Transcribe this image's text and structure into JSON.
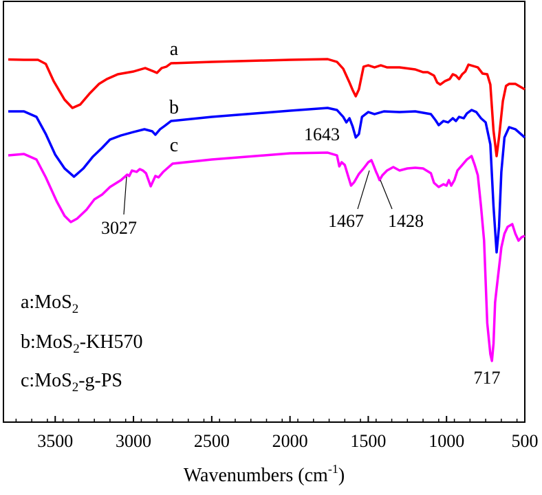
{
  "chart_data": {
    "type": "line",
    "title": "",
    "xlabel": "Wavenumbers",
    "xlabel_unit_base": "(cm",
    "xlabel_unit_exp": "-1",
    "xlabel_unit_close": ")",
    "ylabel": "",
    "xlim": [
      3800,
      500
    ],
    "x_reversed": true,
    "x_ticks": [
      3500,
      3000,
      2500,
      2000,
      1500,
      1000,
      500
    ],
    "series": [
      {
        "name": "a",
        "label": "MoS",
        "label_sub": "2",
        "color": "#ff0000",
        "points": [
          [
            3800,
            86.5
          ],
          [
            3700,
            87
          ],
          [
            3610,
            87
          ],
          [
            3560,
            93
          ],
          [
            3510,
            118
          ],
          [
            3440,
            145
          ],
          [
            3390,
            157
          ],
          [
            3340,
            152
          ],
          [
            3280,
            136
          ],
          [
            3220,
            122
          ],
          [
            3170,
            115
          ],
          [
            3100,
            108
          ],
          [
            3000,
            104
          ],
          [
            2925,
            99
          ],
          [
            2870,
            104
          ],
          [
            2850,
            106
          ],
          [
            2820,
            99
          ],
          [
            2790,
            97
          ],
          [
            2760,
            92
          ],
          [
            2500,
            90
          ],
          [
            2000,
            87
          ],
          [
            1760,
            86
          ],
          [
            1700,
            90
          ],
          [
            1660,
            100
          ],
          [
            1620,
            120
          ],
          [
            1600,
            131
          ],
          [
            1580,
            140
          ],
          [
            1560,
            130
          ],
          [
            1530,
            97
          ],
          [
            1500,
            95
          ],
          [
            1460,
            98
          ],
          [
            1420,
            95
          ],
          [
            1380,
            98
          ],
          [
            1300,
            98
          ],
          [
            1200,
            101
          ],
          [
            1150,
            105
          ],
          [
            1120,
            105
          ],
          [
            1080,
            110
          ],
          [
            1060,
            120
          ],
          [
            1040,
            123
          ],
          [
            1010,
            118
          ],
          [
            980,
            115
          ],
          [
            960,
            108
          ],
          [
            940,
            110
          ],
          [
            920,
            115
          ],
          [
            900,
            108
          ],
          [
            880,
            104
          ],
          [
            860,
            94
          ],
          [
            830,
            96
          ],
          [
            800,
            98
          ],
          [
            770,
            107
          ],
          [
            740,
            108
          ],
          [
            720,
            123
          ],
          [
            700,
            190
          ],
          [
            680,
            227
          ],
          [
            665,
            200
          ],
          [
            640,
            147
          ],
          [
            620,
            125
          ],
          [
            600,
            122
          ],
          [
            560,
            122
          ],
          [
            500,
            130
          ]
        ]
      },
      {
        "name": "b",
        "label": "MoS",
        "label_sub": "2",
        "label_suffix": "-KH570",
        "color": "#0000ff",
        "points": [
          [
            3800,
            162
          ],
          [
            3700,
            162
          ],
          [
            3620,
            170
          ],
          [
            3560,
            195
          ],
          [
            3500,
            225
          ],
          [
            3440,
            245
          ],
          [
            3380,
            257
          ],
          [
            3320,
            245
          ],
          [
            3260,
            228
          ],
          [
            3200,
            215
          ],
          [
            3150,
            203
          ],
          [
            3080,
            197
          ],
          [
            3000,
            192
          ],
          [
            2930,
            188
          ],
          [
            2880,
            191
          ],
          [
            2860,
            196
          ],
          [
            2830,
            188
          ],
          [
            2800,
            183
          ],
          [
            2760,
            176
          ],
          [
            2500,
            170
          ],
          [
            2000,
            161
          ],
          [
            1760,
            157
          ],
          [
            1700,
            160
          ],
          [
            1660,
            170
          ],
          [
            1640,
            178
          ],
          [
            1620,
            172
          ],
          [
            1600,
            184
          ],
          [
            1580,
            200
          ],
          [
            1560,
            195
          ],
          [
            1540,
            170
          ],
          [
            1500,
            163
          ],
          [
            1460,
            166
          ],
          [
            1400,
            162
          ],
          [
            1300,
            163
          ],
          [
            1200,
            162
          ],
          [
            1100,
            166
          ],
          [
            1070,
            175
          ],
          [
            1050,
            182
          ],
          [
            1020,
            176
          ],
          [
            990,
            178
          ],
          [
            960,
            172
          ],
          [
            940,
            176
          ],
          [
            920,
            170
          ],
          [
            890,
            172
          ],
          [
            870,
            165
          ],
          [
            840,
            160
          ],
          [
            810,
            163
          ],
          [
            780,
            172
          ],
          [
            750,
            178
          ],
          [
            720,
            210
          ],
          [
            700,
            300
          ],
          [
            680,
            367
          ],
          [
            665,
            330
          ],
          [
            650,
            250
          ],
          [
            630,
            200
          ],
          [
            600,
            185
          ],
          [
            560,
            188
          ],
          [
            500,
            200
          ]
        ]
      },
      {
        "name": "c",
        "label": "MoS",
        "label_sub": "2",
        "label_suffix": "-g-PS",
        "color": "#ff00ff",
        "points": [
          [
            3800,
            226
          ],
          [
            3700,
            224
          ],
          [
            3620,
            232
          ],
          [
            3560,
            258
          ],
          [
            3490,
            293
          ],
          [
            3440,
            314
          ],
          [
            3400,
            323
          ],
          [
            3360,
            318
          ],
          [
            3300,
            305
          ],
          [
            3250,
            290
          ],
          [
            3200,
            283
          ],
          [
            3150,
            272
          ],
          [
            3080,
            262
          ],
          [
            3040,
            254
          ],
          [
            3027,
            256
          ],
          [
            3010,
            248
          ],
          [
            2980,
            250
          ],
          [
            2960,
            246
          ],
          [
            2940,
            248
          ],
          [
            2920,
            252
          ],
          [
            2890,
            271
          ],
          [
            2860,
            256
          ],
          [
            2840,
            258
          ],
          [
            2810,
            250
          ],
          [
            2780,
            244
          ],
          [
            2750,
            238
          ],
          [
            2500,
            232
          ],
          [
            2000,
            223
          ],
          [
            1760,
            222
          ],
          [
            1700,
            226
          ],
          [
            1685,
            242
          ],
          [
            1670,
            236
          ],
          [
            1650,
            240
          ],
          [
            1630,
            255
          ],
          [
            1610,
            270
          ],
          [
            1590,
            265
          ],
          [
            1560,
            253
          ],
          [
            1530,
            245
          ],
          [
            1500,
            236
          ],
          [
            1480,
            233
          ],
          [
            1467,
            240
          ],
          [
            1450,
            250
          ],
          [
            1440,
            255
          ],
          [
            1428,
            262
          ],
          [
            1410,
            255
          ],
          [
            1380,
            248
          ],
          [
            1340,
            243
          ],
          [
            1300,
            248
          ],
          [
            1250,
            245
          ],
          [
            1200,
            244
          ],
          [
            1150,
            245
          ],
          [
            1100,
            252
          ],
          [
            1080,
            266
          ],
          [
            1050,
            272
          ],
          [
            1020,
            268
          ],
          [
            1000,
            270
          ],
          [
            985,
            262
          ],
          [
            970,
            270
          ],
          [
            950,
            262
          ],
          [
            930,
            248
          ],
          [
            900,
            240
          ],
          [
            870,
            232
          ],
          [
            840,
            227
          ],
          [
            820,
            240
          ],
          [
            800,
            255
          ],
          [
            780,
            300
          ],
          [
            760,
            350
          ],
          [
            740,
            470
          ],
          [
            720,
            515
          ],
          [
            710,
            525
          ],
          [
            700,
            500
          ],
          [
            690,
            440
          ],
          [
            680,
            420
          ],
          [
            670,
            400
          ],
          [
            650,
            360
          ],
          [
            630,
            340
          ],
          [
            610,
            330
          ],
          [
            580,
            326
          ],
          [
            560,
            340
          ],
          [
            540,
            350
          ],
          [
            520,
            345
          ],
          [
            500,
            343
          ]
        ]
      }
    ],
    "annotations": [
      {
        "text": "3027",
        "x": 3027,
        "y": 256
      },
      {
        "text": "1643",
        "x": 1643,
        "y": 178
      },
      {
        "text": "1467",
        "x": 1467,
        "y": 240
      },
      {
        "text": "1428",
        "x": 1428,
        "y": 262
      },
      {
        "text": "717",
        "x": 717,
        "y": 525
      }
    ],
    "legend": {
      "placement": "bottom-left",
      "entries": [
        {
          "prefix": "a:",
          "name": "MoS",
          "sub": "2",
          "suffix": ""
        },
        {
          "prefix": "b:",
          "name": "MoS",
          "sub": "2",
          "suffix": "-KH570"
        },
        {
          "prefix": "c:",
          "name": "MoS",
          "sub": "2",
          "suffix": "-g-PS"
        }
      ]
    }
  }
}
